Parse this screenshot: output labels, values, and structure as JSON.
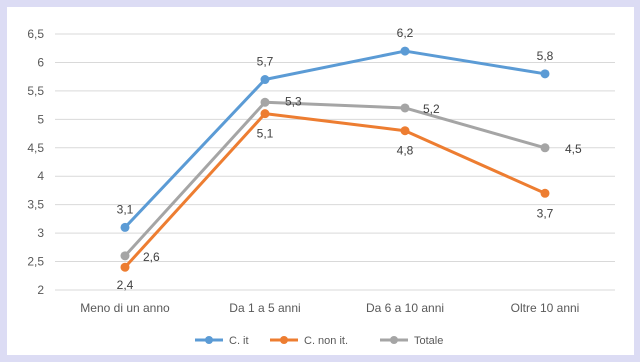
{
  "colors": {
    "frame": "#dcdcf4",
    "grid": "#d9d9d9",
    "axis_text": "#595959",
    "label_text": "#404040"
  },
  "chart_data": {
    "type": "line",
    "categories": [
      "Meno di un anno",
      "Da 1 a 5 anni",
      "Da 6 a 10 anni",
      "Oltre 10 anni"
    ],
    "ylim": [
      2,
      6.5
    ],
    "yticks": [
      2,
      2.5,
      3,
      3.5,
      4,
      4.5,
      5,
      5.5,
      6,
      6.5
    ],
    "ytick_labels": [
      "2",
      "2,5",
      "3",
      "3,5",
      "4",
      "4,5",
      "5",
      "5,5",
      "6",
      "6,5"
    ],
    "grid": true,
    "legend_position": "bottom",
    "series": [
      {
        "name": "C. it",
        "color": "#5b9bd5",
        "values": [
          3.1,
          5.7,
          6.2,
          5.8
        ],
        "labels": [
          "3,1",
          "5,7",
          "6,2",
          "5,8"
        ]
      },
      {
        "name": "C. non it.",
        "color": "#ed7d31",
        "values": [
          2.4,
          5.1,
          4.8,
          3.7
        ],
        "labels": [
          "2,4",
          "5,1",
          "4,8",
          "3,7"
        ]
      },
      {
        "name": "Totale",
        "color": "#a5a5a5",
        "values": [
          2.6,
          5.3,
          5.2,
          4.5
        ],
        "labels": [
          "2,6",
          "5,3",
          "5,2",
          "4,5"
        ]
      }
    ]
  }
}
